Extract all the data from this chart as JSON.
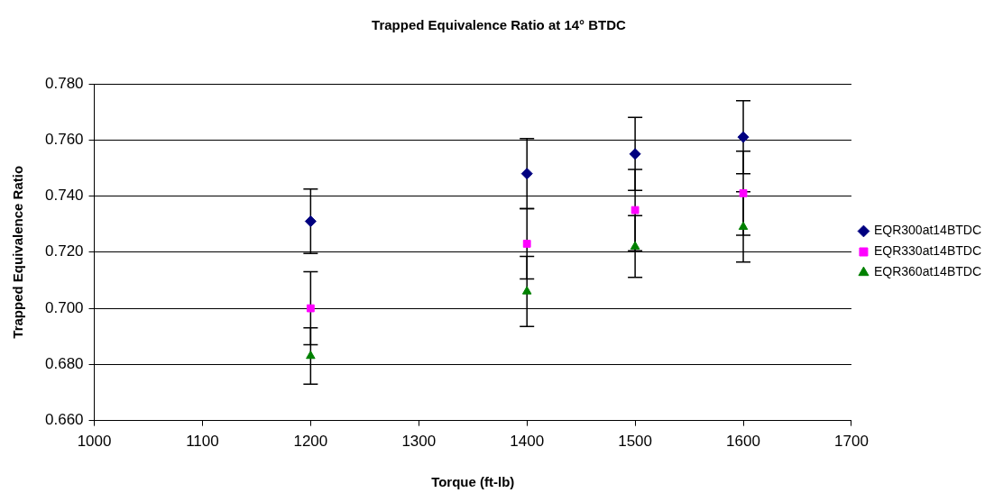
{
  "chart_data": {
    "type": "scatter",
    "title": "Trapped Equivalence Ratio at 14° BTDC",
    "xlabel": "Torque (ft-lb)",
    "ylabel": "Trapped Equivalence Ratio",
    "x": [
      1200,
      1400,
      1500,
      1600
    ],
    "series": [
      {
        "name": "EQR300at14BTDC",
        "color": "#000080",
        "marker": "diamond",
        "values": [
          0.731,
          0.748,
          0.755,
          0.761
        ],
        "errors": [
          0.0115,
          0.0125,
          0.013,
          0.013
        ]
      },
      {
        "name": "EQR330at14BTDC",
        "color": "#ff00ff",
        "marker": "square",
        "values": [
          0.7,
          0.723,
          0.735,
          0.741
        ],
        "errors": [
          0.013,
          0.0125,
          0.0145,
          0.015
        ]
      },
      {
        "name": "EQR360at14BTDC",
        "color": "#008000",
        "marker": "triangle",
        "values": [
          0.683,
          0.706,
          0.722,
          0.729
        ],
        "errors": [
          0.01,
          0.0125,
          0.011,
          0.0125
        ]
      }
    ],
    "xlim": [
      1000,
      1700
    ],
    "xticks": [
      1000,
      1100,
      1200,
      1300,
      1400,
      1500,
      1600,
      1700
    ],
    "ylim": [
      0.66,
      0.78
    ],
    "yticks": [
      {
        "value": 0.66,
        "label": "0.660"
      },
      {
        "value": 0.68,
        "label": "0.680"
      },
      {
        "value": 0.7,
        "label": "0.700"
      },
      {
        "value": 0.72,
        "label": "0.720"
      },
      {
        "value": 0.74,
        "label": "0.740"
      },
      {
        "value": 0.76,
        "label": "0.760"
      },
      {
        "value": 0.78,
        "label": "0.780"
      }
    ],
    "grid": "y",
    "legend": "right"
  }
}
